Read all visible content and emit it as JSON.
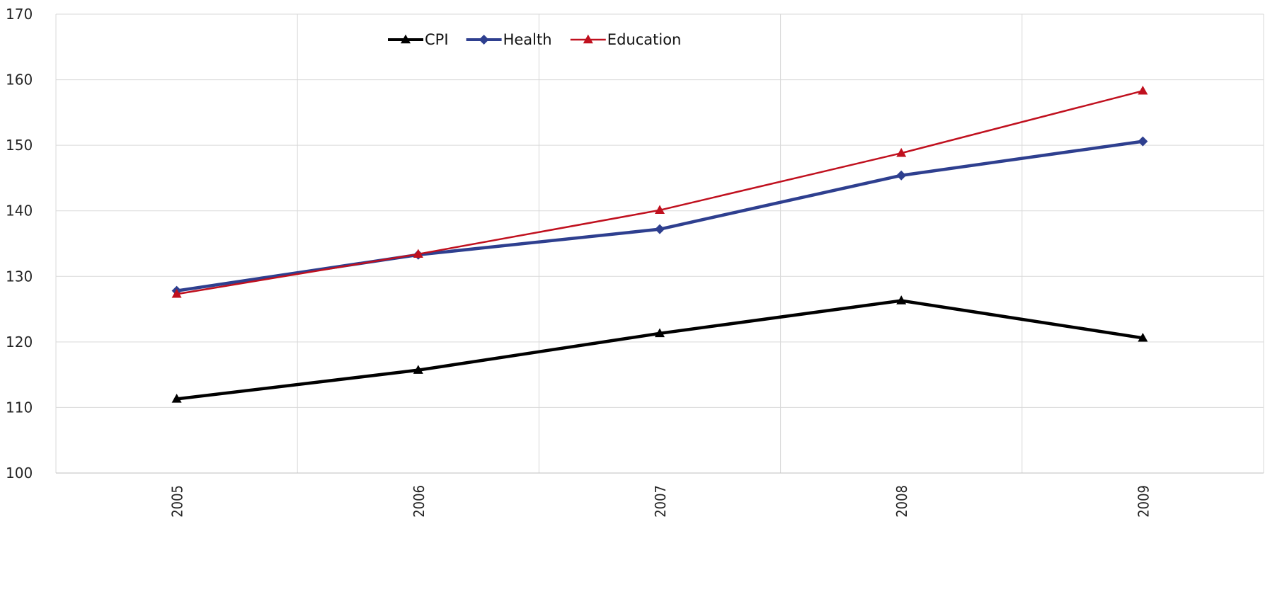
{
  "chart_data": {
    "type": "line",
    "title": "",
    "xlabel": "",
    "ylabel": "",
    "categories": [
      "2005",
      "2006",
      "2007",
      "2008",
      "2009"
    ],
    "ylim": [
      100,
      170
    ],
    "yticks": [
      "100",
      "110",
      "120",
      "130",
      "140",
      "150",
      "160",
      "170"
    ],
    "grid": true,
    "legend_position": "top-center",
    "series": [
      {
        "name": "CPI",
        "values": [
          111.3,
          115.7,
          121.3,
          126.3,
          120.6
        ],
        "color": "#000000",
        "marker": "triangle"
      },
      {
        "name": "Health",
        "values": [
          127.8,
          133.3,
          137.2,
          145.4,
          150.6
        ],
        "color": "#2E3F8F",
        "marker": "diamond"
      },
      {
        "name": "Education",
        "values": [
          127.3,
          133.4,
          140.1,
          148.8,
          158.3
        ],
        "color": "#C0101E",
        "marker": "triangle"
      }
    ]
  }
}
